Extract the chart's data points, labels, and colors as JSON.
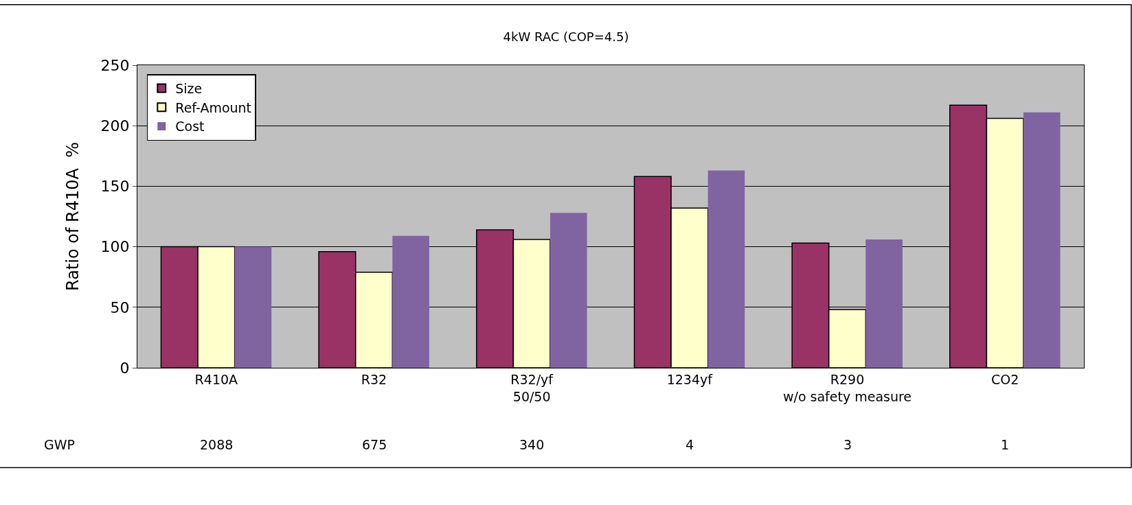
{
  "chart_data": {
    "type": "bar",
    "title": "4kW RAC (COP=4.5)",
    "ylabel": "Ratio of R410A  %",
    "categories": [
      "R410A",
      "R32",
      "R32/yf\n50/50",
      "1234yf",
      "R290\nw/o safety measure",
      "CO2"
    ],
    "series": [
      {
        "name": "Size",
        "color": "#993366",
        "values": [
          100,
          96,
          114,
          158,
          103,
          217
        ]
      },
      {
        "name": "Ref-Amount",
        "color": "#ffffcc",
        "values": [
          100,
          79,
          106,
          132,
          48,
          206
        ]
      },
      {
        "name": "Cost",
        "color": "#8064a2",
        "values": [
          100,
          109,
          128,
          163,
          106,
          211
        ]
      }
    ],
    "ylim": [
      0,
      250
    ],
    "yticks": [
      0,
      50,
      100,
      150,
      200,
      250
    ],
    "grid": "y",
    "legend": "top left",
    "annotations": [
      "GWP",
      "2088",
      "675",
      "340",
      "4",
      "3",
      "1"
    ]
  }
}
